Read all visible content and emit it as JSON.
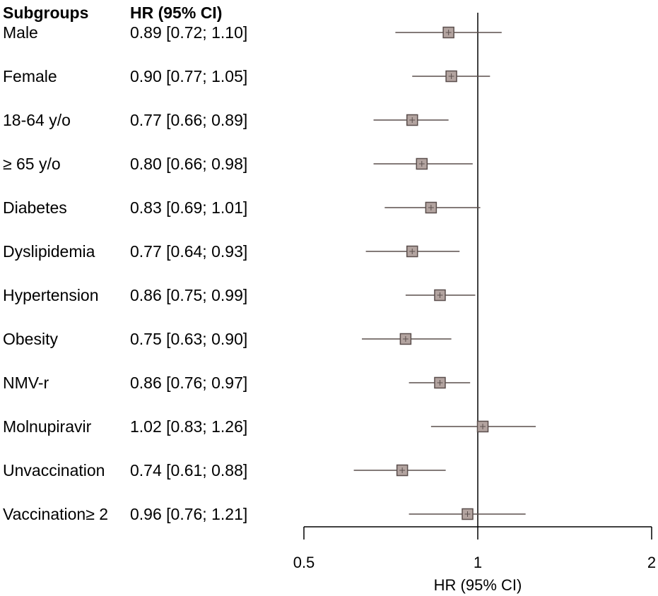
{
  "chart_data": {
    "type": "forest",
    "header_subgroups": "Subgroups",
    "header_hr": "HR (95% CI)",
    "xlabel": "HR (95% CI)",
    "x_scale": "log",
    "xlim": [
      0.5,
      2
    ],
    "ticks": [
      {
        "value": 0.5,
        "label": "0.5"
      },
      {
        "value": 1,
        "label": "1"
      },
      {
        "value": 2,
        "label": "2"
      }
    ],
    "reference_line": 1,
    "marker_color": "#b3a4a0",
    "line_color": "#5a4e4c",
    "rows": [
      {
        "subgroup": "Male",
        "hr_text": "0.89 [0.72; 1.10]",
        "hr": 0.89,
        "lo": 0.72,
        "hi": 1.1
      },
      {
        "subgroup": "Female",
        "hr_text": "0.90 [0.77; 1.05]",
        "hr": 0.9,
        "lo": 0.77,
        "hi": 1.05
      },
      {
        "subgroup": "18-64 y/o",
        "hr_text": "0.77 [0.66; 0.89]",
        "hr": 0.77,
        "lo": 0.66,
        "hi": 0.89
      },
      {
        "subgroup": "≥ 65 y/o",
        "hr_text": "0.80 [0.66; 0.98]",
        "hr": 0.8,
        "lo": 0.66,
        "hi": 0.98
      },
      {
        "subgroup": "Diabetes",
        "hr_text": "0.83 [0.69; 1.01]",
        "hr": 0.83,
        "lo": 0.69,
        "hi": 1.01
      },
      {
        "subgroup": "Dyslipidemia",
        "hr_text": "0.77 [0.64; 0.93]",
        "hr": 0.77,
        "lo": 0.64,
        "hi": 0.93
      },
      {
        "subgroup": "Hypertension",
        "hr_text": "0.86 [0.75; 0.99]",
        "hr": 0.86,
        "lo": 0.75,
        "hi": 0.99
      },
      {
        "subgroup": "Obesity",
        "hr_text": "0.75 [0.63; 0.90]",
        "hr": 0.75,
        "lo": 0.63,
        "hi": 0.9
      },
      {
        "subgroup": "NMV-r",
        "hr_text": "0.86 [0.76; 0.97]",
        "hr": 0.86,
        "lo": 0.76,
        "hi": 0.97
      },
      {
        "subgroup": "Molnupiravir",
        "hr_text": "1.02 [0.83; 1.26]",
        "hr": 1.02,
        "lo": 0.83,
        "hi": 1.26
      },
      {
        "subgroup": "Unvaccination",
        "hr_text": "0.74 [0.61; 0.88]",
        "hr": 0.74,
        "lo": 0.61,
        "hi": 0.88
      },
      {
        "subgroup": "Vaccination≥ 2",
        "hr_text": "0.96 [0.76; 1.21]",
        "hr": 0.96,
        "lo": 0.76,
        "hi": 1.21
      }
    ]
  }
}
